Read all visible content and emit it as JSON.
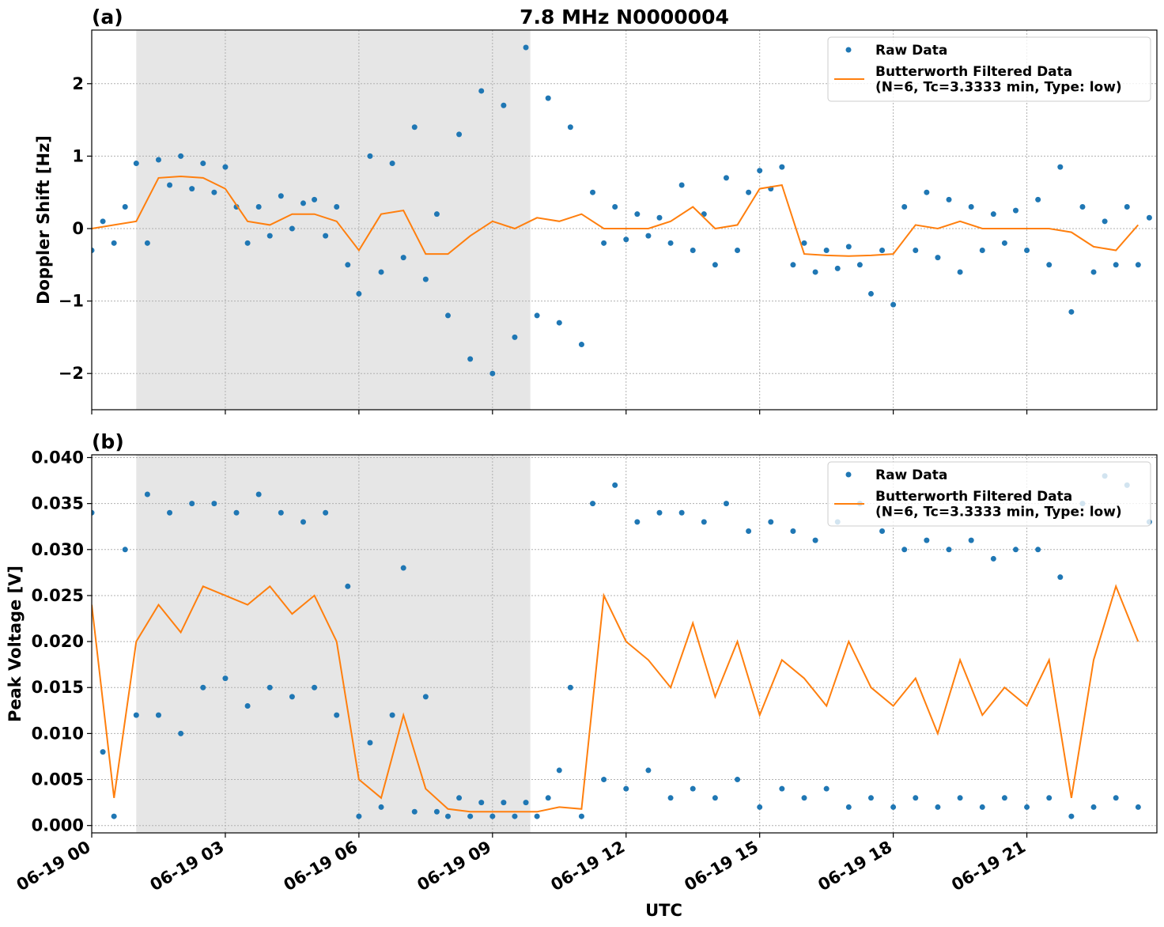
{
  "chart_data": [
    {
      "type": "line",
      "title": "7.8 MHz N0000004",
      "panel_label": "(a)",
      "y_label": "Doppler Shift [Hz]",
      "xlim": [
        0,
        23.92
      ],
      "xticks": [
        0,
        3,
        6,
        9,
        12,
        15,
        18,
        21
      ],
      "ylim": [
        -2.5,
        2.74
      ],
      "yticks": [
        {
          "value": -2,
          "label": "−2"
        },
        {
          "value": -1,
          "label": "−1"
        },
        0,
        1,
        2
      ],
      "grid": true,
      "legend": "upper right",
      "shaded_span": [
        1.0,
        9.85
      ],
      "series": [
        {
          "name": "Raw Data",
          "kind": "scatter",
          "color": "#1f77b4",
          "x": [
            0,
            0.25,
            0.5,
            0.75,
            1,
            1.25,
            1.5,
            1.75,
            2,
            2.25,
            2.5,
            2.75,
            3,
            3.25,
            3.5,
            3.75,
            4,
            4.25,
            4.5,
            4.75,
            5,
            5.25,
            5.5,
            5.75,
            6,
            6.25,
            6.5,
            6.75,
            7,
            7.25,
            7.5,
            7.75,
            8,
            8.25,
            8.5,
            8.75,
            9,
            9.25,
            9.5,
            9.75,
            10,
            10.25,
            10.5,
            10.75,
            11,
            11.25,
            11.5,
            11.75,
            12,
            12.25,
            12.5,
            12.75,
            13,
            13.25,
            13.5,
            13.75,
            14,
            14.25,
            14.5,
            14.75,
            15,
            15.25,
            15.5,
            15.75,
            16,
            16.25,
            16.5,
            16.75,
            17,
            17.25,
            17.5,
            17.75,
            18,
            18.25,
            18.5,
            18.75,
            19,
            19.25,
            19.5,
            19.75,
            20,
            20.25,
            20.5,
            20.75,
            21,
            21.25,
            21.5,
            21.75,
            22,
            22.25,
            22.5,
            22.75,
            23,
            23.25,
            23.5,
            23.75
          ],
          "values": [
            -0.3,
            0.1,
            -0.2,
            0.3,
            0.9,
            -0.2,
            0.95,
            0.6,
            1.0,
            0.55,
            0.9,
            0.5,
            0.85,
            0.3,
            -0.2,
            0.3,
            -0.1,
            0.45,
            0.0,
            0.35,
            0.4,
            -0.1,
            0.3,
            -0.5,
            -0.9,
            1.0,
            -0.6,
            0.9,
            -0.4,
            1.4,
            -0.7,
            0.2,
            -1.2,
            1.3,
            -1.8,
            1.9,
            -2.0,
            1.7,
            -1.5,
            2.5,
            -1.2,
            1.8,
            -1.3,
            1.4,
            -1.6,
            0.5,
            -0.2,
            0.3,
            -0.15,
            0.2,
            -0.1,
            0.15,
            -0.2,
            0.6,
            -0.3,
            0.2,
            -0.5,
            0.7,
            -0.3,
            0.5,
            0.8,
            0.55,
            0.85,
            -0.5,
            -0.2,
            -0.6,
            -0.3,
            -0.55,
            -0.25,
            -0.5,
            -0.9,
            -0.3,
            -1.05,
            0.3,
            -0.3,
            0.5,
            -0.4,
            0.4,
            -0.6,
            0.3,
            -0.3,
            0.2,
            -0.2,
            0.25,
            -0.3,
            0.4,
            -0.5,
            0.85,
            -1.15,
            0.3,
            -0.6,
            0.1,
            -0.5,
            0.3,
            -0.5,
            0.15
          ]
        },
        {
          "name": "Butterworth Filtered Data\n(N=6, Tc=3.3333 min, Type: low)",
          "kind": "line",
          "color": "#ff7f0e",
          "x": [
            0,
            0.5,
            1,
            1.5,
            2,
            2.5,
            3,
            3.5,
            4,
            4.5,
            5,
            5.5,
            6,
            6.5,
            7,
            7.5,
            8,
            8.5,
            9,
            9.5,
            10,
            10.5,
            11,
            11.5,
            12,
            12.5,
            13,
            13.5,
            14,
            14.5,
            15,
            15.5,
            16,
            16.5,
            17,
            17.5,
            18,
            18.5,
            19,
            19.5,
            20,
            20.5,
            21,
            21.5,
            22,
            22.5,
            23,
            23.5
          ],
          "values": [
            0.0,
            0.05,
            0.1,
            0.7,
            0.72,
            0.7,
            0.55,
            0.1,
            0.05,
            0.2,
            0.2,
            0.1,
            -0.3,
            0.2,
            0.25,
            -0.35,
            -0.35,
            -0.1,
            0.1,
            0.0,
            0.15,
            0.1,
            0.2,
            0.0,
            0.0,
            0.0,
            0.1,
            0.3,
            0.0,
            0.05,
            0.55,
            0.6,
            -0.35,
            -0.37,
            -0.38,
            -0.37,
            -0.35,
            0.05,
            0.0,
            0.1,
            0.0,
            0.0,
            0.0,
            0.0,
            -0.05,
            -0.25,
            -0.3,
            0.05
          ]
        }
      ]
    },
    {
      "type": "line",
      "panel_label": "(b)",
      "y_label": "Peak Voltage [V]",
      "x_label": "UTC",
      "xlim": [
        0,
        23.92
      ],
      "xticks": [
        {
          "value": 0,
          "label": "06-19 00"
        },
        {
          "value": 3,
          "label": "06-19 03"
        },
        {
          "value": 6,
          "label": "06-19 06"
        },
        {
          "value": 9,
          "label": "06-19 09"
        },
        {
          "value": 12,
          "label": "06-19 12"
        },
        {
          "value": 15,
          "label": "06-19 15"
        },
        {
          "value": 18,
          "label": "06-19 18"
        },
        {
          "value": 21,
          "label": "06-19 21"
        }
      ],
      "ylim": [
        -0.0008,
        0.0403
      ],
      "yticks": [
        {
          "value": 0,
          "label": "0.000"
        },
        {
          "value": 0.005,
          "label": "0.005"
        },
        {
          "value": 0.01,
          "label": "0.010"
        },
        {
          "value": 0.015,
          "label": "0.015"
        },
        {
          "value": 0.02,
          "label": "0.020"
        },
        {
          "value": 0.025,
          "label": "0.025"
        },
        {
          "value": 0.03,
          "label": "0.030"
        },
        {
          "value": 0.035,
          "label": "0.035"
        },
        {
          "value": 0.04,
          "label": "0.040"
        }
      ],
      "grid": true,
      "legend": "upper right",
      "shaded_span": [
        1.0,
        9.85
      ],
      "series": [
        {
          "name": "Raw Data",
          "kind": "scatter",
          "color": "#1f77b4",
          "x": [
            0,
            0.25,
            0.5,
            0.75,
            1,
            1.25,
            1.5,
            1.75,
            2,
            2.25,
            2.5,
            2.75,
            3,
            3.25,
            3.5,
            3.75,
            4,
            4.25,
            4.5,
            4.75,
            5,
            5.25,
            5.5,
            5.75,
            6,
            6.25,
            6.5,
            6.75,
            7,
            7.25,
            7.5,
            7.75,
            8,
            8.25,
            8.5,
            8.75,
            9,
            9.25,
            9.5,
            9.75,
            10,
            10.25,
            10.5,
            10.75,
            11,
            11.25,
            11.5,
            11.75,
            12,
            12.25,
            12.5,
            12.75,
            13,
            13.25,
            13.5,
            13.75,
            14,
            14.25,
            14.5,
            14.75,
            15,
            15.25,
            15.5,
            15.75,
            16,
            16.25,
            16.5,
            16.75,
            17,
            17.25,
            17.5,
            17.75,
            18,
            18.25,
            18.5,
            18.75,
            19,
            19.25,
            19.5,
            19.75,
            20,
            20.25,
            20.5,
            20.75,
            21,
            21.25,
            21.5,
            21.75,
            22,
            22.25,
            22.5,
            22.75,
            23,
            23.25,
            23.5,
            23.75
          ],
          "values": [
            0.034,
            0.008,
            0.001,
            0.03,
            0.012,
            0.036,
            0.012,
            0.034,
            0.01,
            0.035,
            0.015,
            0.035,
            0.016,
            0.034,
            0.013,
            0.036,
            0.015,
            0.034,
            0.014,
            0.033,
            0.015,
            0.034,
            0.012,
            0.026,
            0.001,
            0.009,
            0.002,
            0.012,
            0.028,
            0.0015,
            0.014,
            0.0015,
            0.001,
            0.003,
            0.001,
            0.0025,
            0.001,
            0.0025,
            0.001,
            0.0025,
            0.001,
            0.003,
            0.006,
            0.015,
            0.001,
            0.035,
            0.005,
            0.037,
            0.004,
            0.033,
            0.006,
            0.034,
            0.003,
            0.034,
            0.004,
            0.033,
            0.003,
            0.035,
            0.005,
            0.032,
            0.002,
            0.033,
            0.004,
            0.032,
            0.003,
            0.031,
            0.004,
            0.033,
            0.002,
            0.035,
            0.003,
            0.032,
            0.002,
            0.03,
            0.003,
            0.031,
            0.002,
            0.03,
            0.003,
            0.031,
            0.002,
            0.029,
            0.003,
            0.03,
            0.002,
            0.03,
            0.003,
            0.027,
            0.001,
            0.035,
            0.002,
            0.038,
            0.003,
            0.037,
            0.002,
            0.033
          ]
        },
        {
          "name": "Butterworth Filtered Data\n(N=6, Tc=3.3333 min, Type: low)",
          "kind": "line",
          "color": "#ff7f0e",
          "x": [
            0,
            0.5,
            1,
            1.5,
            2,
            2.5,
            3,
            3.5,
            4,
            4.5,
            5,
            5.5,
            6,
            6.5,
            7,
            7.5,
            8,
            8.5,
            9,
            9.5,
            10,
            10.5,
            11,
            11.5,
            12,
            12.5,
            13,
            13.5,
            14,
            14.5,
            15,
            15.5,
            16,
            16.5,
            17,
            17.5,
            18,
            18.5,
            19,
            19.5,
            20,
            20.5,
            21,
            21.5,
            22,
            22.5,
            23,
            23.5
          ],
          "values": [
            0.024,
            0.003,
            0.02,
            0.024,
            0.021,
            0.026,
            0.025,
            0.024,
            0.026,
            0.023,
            0.025,
            0.02,
            0.005,
            0.003,
            0.012,
            0.004,
            0.0018,
            0.0015,
            0.0015,
            0.0015,
            0.0015,
            0.002,
            0.0018,
            0.025,
            0.02,
            0.018,
            0.015,
            0.022,
            0.014,
            0.02,
            0.012,
            0.018,
            0.016,
            0.013,
            0.02,
            0.015,
            0.013,
            0.016,
            0.01,
            0.018,
            0.012,
            0.015,
            0.013,
            0.018,
            0.003,
            0.018,
            0.026,
            0.02
          ]
        }
      ]
    }
  ]
}
